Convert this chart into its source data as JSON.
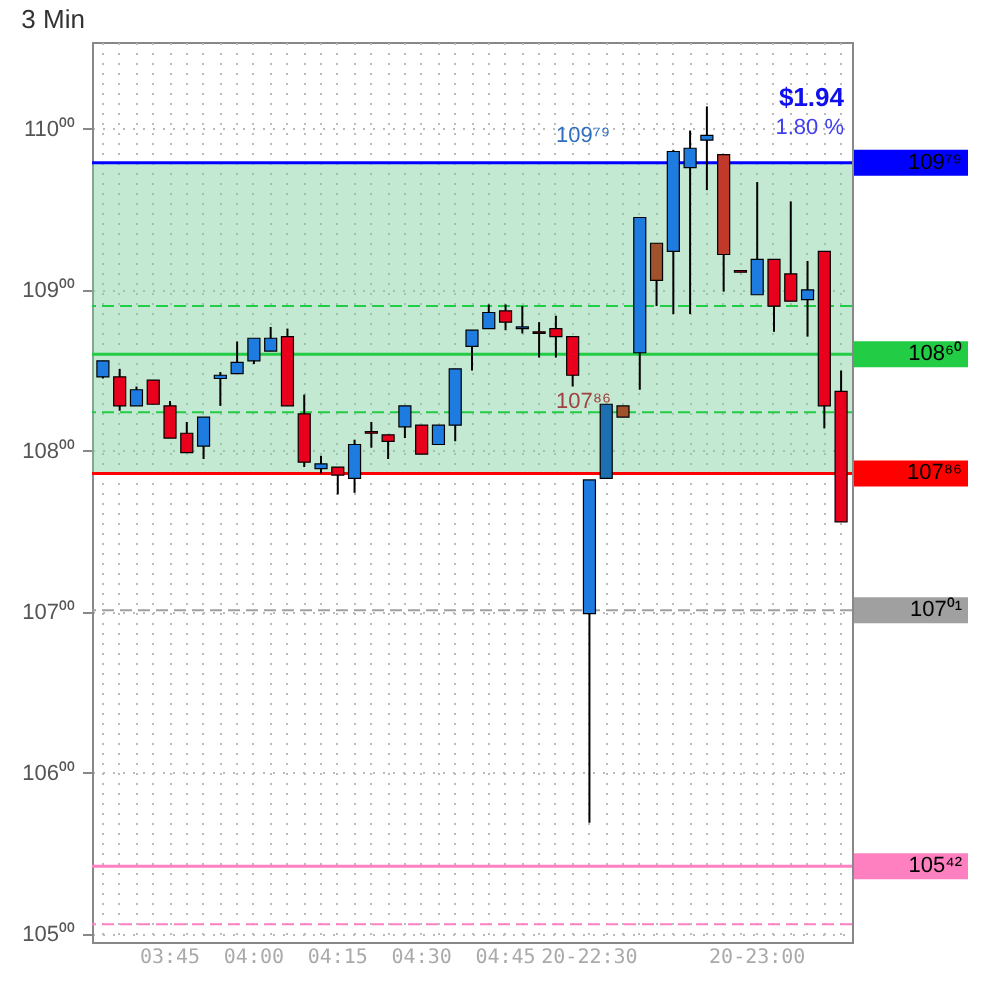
{
  "chart_data": {
    "type": "candlestick",
    "title": "3 Min",
    "categories": [
      null,
      null,
      null,
      null,
      "03:45",
      null,
      null,
      null,
      null,
      "04:00",
      null,
      null,
      null,
      null,
      "04:15",
      null,
      null,
      null,
      null,
      "04:30",
      null,
      null,
      null,
      null,
      "04:45",
      null,
      null,
      null,
      null,
      "20-22:30",
      null,
      null,
      null,
      null,
      null,
      null,
      null,
      null,
      null,
      "20-23:00",
      null,
      null,
      null,
      null,
      null
    ],
    "ohlc": [
      [
        108.46,
        108.56,
        108.45,
        108.56
      ],
      [
        108.46,
        108.51,
        108.25,
        108.28
      ],
      [
        108.28,
        108.4,
        108.28,
        108.38
      ],
      [
        108.44,
        108.44,
        108.29,
        108.29
      ],
      [
        108.28,
        108.31,
        108.08,
        108.08
      ],
      [
        108.11,
        108.18,
        107.99,
        107.99
      ],
      [
        108.03,
        108.21,
        107.95,
        108.21
      ],
      [
        108.45,
        108.49,
        108.28,
        108.47
      ],
      [
        108.48,
        108.68,
        108.48,
        108.55
      ],
      [
        108.56,
        108.7,
        108.54,
        108.7
      ],
      [
        108.62,
        108.77,
        108.62,
        108.7
      ],
      [
        108.71,
        108.76,
        108.28,
        108.28
      ],
      [
        108.23,
        108.35,
        107.9,
        107.93
      ],
      [
        107.89,
        107.97,
        107.86,
        107.92
      ],
      [
        107.9,
        107.9,
        107.73,
        107.85
      ],
      [
        107.83,
        108.07,
        107.74,
        108.04
      ],
      [
        108.12,
        108.18,
        108.02,
        108.11
      ],
      [
        108.1,
        108.1,
        107.95,
        108.06
      ],
      [
        108.15,
        108.28,
        108.08,
        108.28
      ],
      [
        108.16,
        108.16,
        107.98,
        107.98
      ],
      [
        108.04,
        108.16,
        108.04,
        108.16
      ],
      [
        108.16,
        108.51,
        108.06,
        108.51
      ],
      [
        108.65,
        108.75,
        108.5,
        108.75
      ],
      [
        108.76,
        108.91,
        108.76,
        108.86
      ],
      [
        108.87,
        108.91,
        108.75,
        108.8
      ],
      [
        108.76,
        108.9,
        108.73,
        108.77
      ],
      [
        108.74,
        108.8,
        108.58,
        108.73
      ],
      [
        108.76,
        108.84,
        108.58,
        108.71
      ],
      [
        108.71,
        108.71,
        108.4,
        108.47
      ],
      [
        106.99,
        107.82,
        105.69,
        107.82
      ],
      [
        107.83,
        108.29,
        107.83,
        108.29
      ],
      [
        108.28,
        108.28,
        108.21,
        108.21
      ],
      [
        108.61,
        109.45,
        108.38,
        109.45
      ],
      [
        109.29,
        109.29,
        108.9,
        109.06
      ],
      [
        109.24,
        109.87,
        108.85,
        109.86
      ],
      [
        109.76,
        109.99,
        108.85,
        109.88
      ],
      [
        109.93,
        110.14,
        109.62,
        109.96
      ],
      [
        109.84,
        109.84,
        108.99,
        109.22
      ],
      [
        109.12,
        109.12,
        109.11,
        109.11
      ],
      [
        108.97,
        109.67,
        108.97,
        109.19
      ],
      [
        109.19,
        109.19,
        108.74,
        108.9
      ],
      [
        109.1,
        109.55,
        108.93,
        108.93
      ],
      [
        108.94,
        109.18,
        108.71,
        109.0
      ],
      [
        109.24,
        109.24,
        108.14,
        108.28
      ],
      [
        108.37,
        108.5,
        107.56,
        107.56
      ]
    ],
    "colors": [
      "#1e7be0",
      "#e8001c",
      "#1e7be0",
      "#e8001c",
      "#e8001c",
      "#e8001c",
      "#1e7be0",
      "#1e7be0",
      "#1e7be0",
      "#1e7be0",
      "#1e7be0",
      "#e8001c",
      "#e8001c",
      "#1e7be0",
      "#e8001c",
      "#1e7be0",
      "#e8001c",
      "#e8001c",
      "#1e7be0",
      "#e8001c",
      "#1e7be0",
      "#1e7be0",
      "#1e7be0",
      "#1e7be0",
      "#e8001c",
      "#1e7be0",
      "#e8001c",
      "#e8001c",
      "#e8001c",
      "#1e7be0",
      "#1e6fb0",
      "#a0522d",
      "#1e7be0",
      "#a0522d",
      "#1e7be0",
      "#1e7be0",
      "#1e7be0",
      "#c0392b",
      "#e8001c",
      "#1e7be0",
      "#e8001c",
      "#e8001c",
      "#1e7be0",
      "#e8001c",
      "#e8001c"
    ],
    "ylim": [
      104.95,
      110.54
    ],
    "yticks": [
      {
        "value": 105,
        "label": "105⁰⁰"
      },
      {
        "value": 106,
        "label": "106⁰⁰"
      },
      {
        "value": 107,
        "label": "107⁰⁰"
      },
      {
        "value": 108,
        "label": "108⁰⁰"
      },
      {
        "value": 109,
        "label": "109⁰⁰"
      },
      {
        "value": 110,
        "label": "110⁰⁰"
      }
    ],
    "grid": true,
    "ref_lines": [
      {
        "axis": "y",
        "value": 109.79,
        "label": "109⁷⁹",
        "color": "#0000ff",
        "line_style": "solid"
      },
      {
        "axis": "y",
        "value": 108.9,
        "label": null,
        "color": "#22cc44",
        "line_style": "dashed"
      },
      {
        "axis": "y",
        "value": 108.6,
        "label": "108⁶⁰",
        "color": "#22cc44",
        "line_style": "solid"
      },
      {
        "axis": "y",
        "value": 108.24,
        "label": null,
        "color": "#22cc44",
        "line_style": "dashed"
      },
      {
        "axis": "y",
        "value": 107.86,
        "label": "107⁸⁶",
        "color": "#ff0000",
        "line_style": "solid"
      },
      {
        "axis": "y",
        "value": 107.01,
        "label": "107⁰¹",
        "color": "#a0a0a0",
        "line_style": "dashed"
      },
      {
        "axis": "y",
        "value": 105.42,
        "label": "105⁴²",
        "color": "#ff80c0",
        "line_style": "solid"
      },
      {
        "axis": "y",
        "value": 105.06,
        "label": null,
        "color": "#ff80c0",
        "line_style": "dashed"
      }
    ],
    "bands": [
      {
        "axis": "y",
        "from": 107.86,
        "to": 109.79,
        "label": null,
        "color": "#7ccf9c"
      }
    ],
    "annotations": [
      "$1.94",
      "1.80 %",
      "109⁷⁹",
      "107⁸⁶"
    ]
  }
}
